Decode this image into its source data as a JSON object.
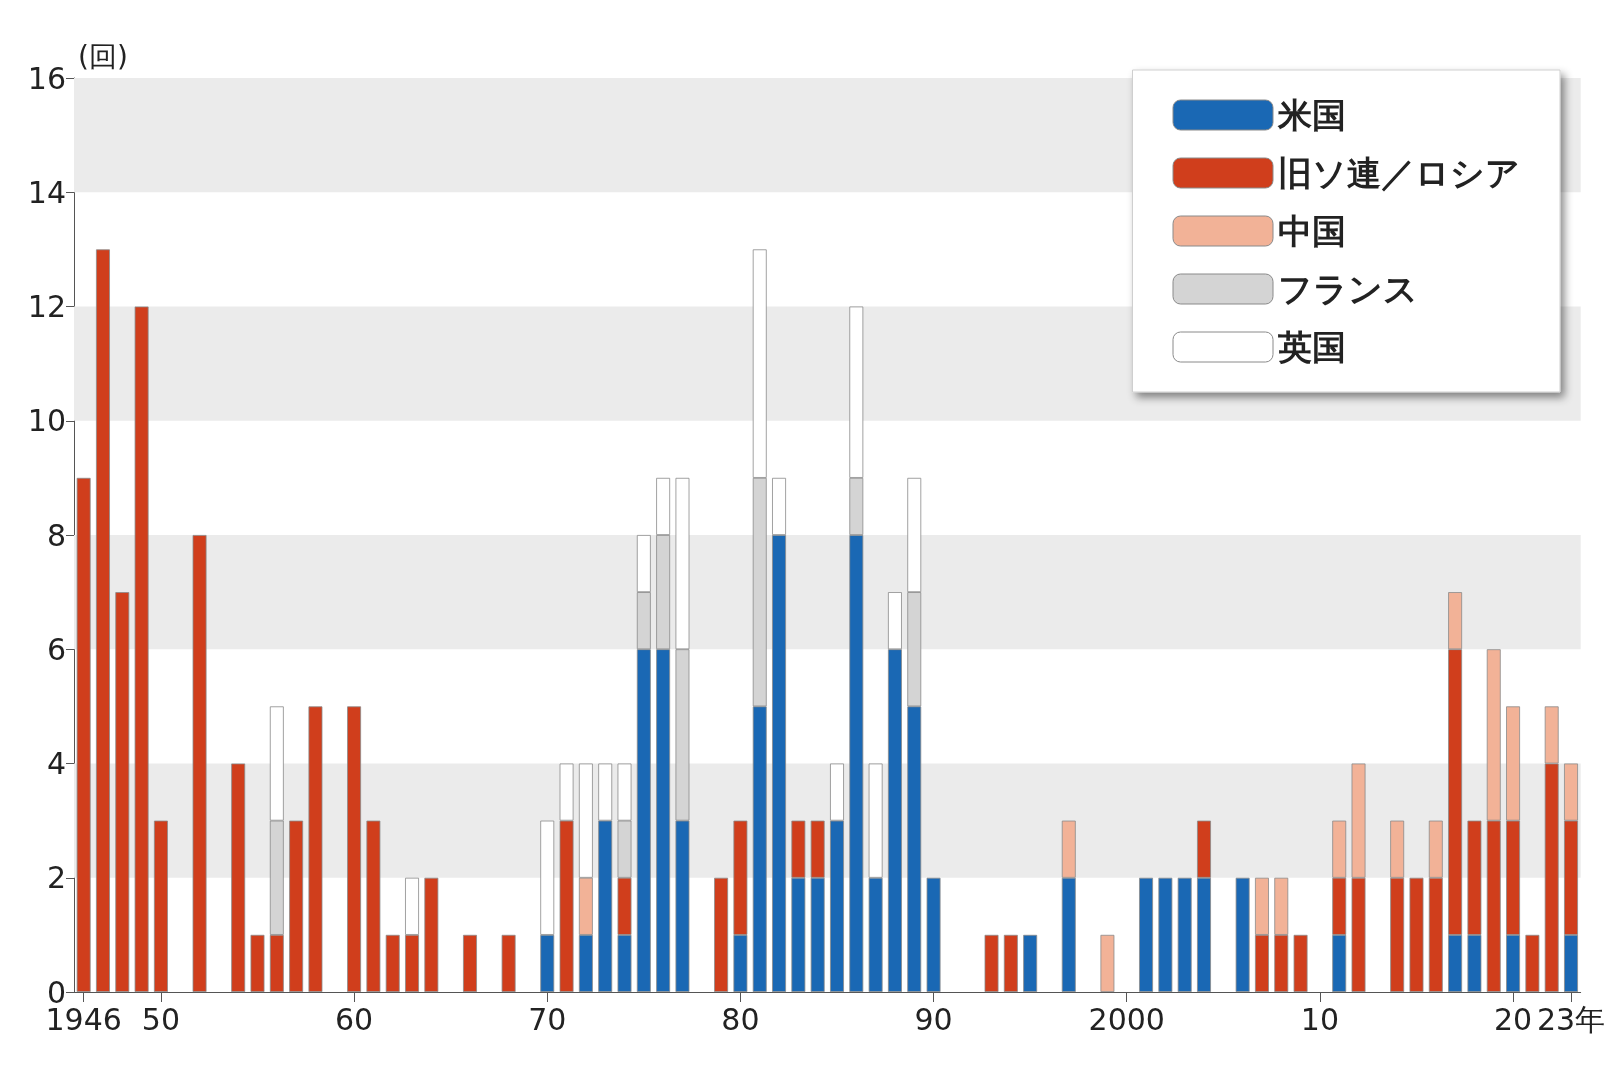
{
  "chart_data": {
    "type": "bar",
    "stacked": true,
    "ylabel": "(回)",
    "categories": [
      "1946",
      null,
      null,
      null,
      "50",
      null,
      null,
      null,
      null,
      null,
      null,
      null,
      null,
      null,
      "60",
      null,
      null,
      null,
      null,
      null,
      null,
      null,
      null,
      null,
      "70",
      null,
      null,
      null,
      null,
      null,
      null,
      null,
      null,
      null,
      "80",
      null,
      null,
      null,
      null,
      null,
      null,
      null,
      null,
      null,
      "90",
      null,
      null,
      null,
      null,
      null,
      null,
      null,
      null,
      null,
      "2000",
      null,
      null,
      null,
      null,
      null,
      null,
      null,
      null,
      null,
      "10",
      null,
      null,
      null,
      null,
      null,
      null,
      null,
      null,
      null,
      "20",
      null,
      null,
      "23年"
    ],
    "series": [
      {
        "name": "米国",
        "color": "#1a68b4",
        "values": [
          null,
          null,
          null,
          null,
          null,
          null,
          null,
          null,
          null,
          null,
          null,
          null,
          null,
          null,
          null,
          null,
          null,
          null,
          null,
          null,
          null,
          null,
          null,
          null,
          1,
          null,
          1,
          3,
          1,
          6,
          6,
          3,
          null,
          null,
          1,
          5,
          8,
          2,
          2,
          3,
          8,
          2,
          6,
          5,
          2,
          null,
          null,
          null,
          null,
          1,
          null,
          2,
          null,
          null,
          null,
          2,
          2,
          2,
          2,
          null,
          2,
          null,
          null,
          null,
          null,
          1,
          null,
          null,
          null,
          null,
          null,
          1,
          1,
          null,
          1,
          null,
          null,
          1
        ]
      },
      {
        "name": "旧ソ連／ロシア",
        "color": "#d03e1c",
        "values": [
          9,
          13,
          7,
          12,
          3,
          null,
          8,
          null,
          4,
          1,
          1,
          3,
          5,
          null,
          5,
          3,
          1,
          1,
          2,
          null,
          1,
          null,
          1,
          null,
          null,
          3,
          null,
          null,
          1,
          null,
          null,
          null,
          null,
          2,
          2,
          null,
          null,
          1,
          1,
          null,
          null,
          null,
          null,
          null,
          null,
          null,
          null,
          1,
          1,
          null,
          null,
          null,
          null,
          null,
          null,
          null,
          null,
          null,
          1,
          null,
          null,
          1,
          1,
          1,
          null,
          1,
          2,
          null,
          2,
          2,
          2,
          5,
          2,
          3,
          2,
          1,
          4,
          2
        ]
      },
      {
        "name": "中国",
        "color": "#f2b297",
        "values": [
          null,
          null,
          null,
          null,
          null,
          null,
          null,
          null,
          null,
          null,
          null,
          null,
          null,
          null,
          null,
          null,
          null,
          null,
          null,
          null,
          null,
          null,
          null,
          null,
          null,
          null,
          1,
          null,
          null,
          null,
          null,
          null,
          null,
          null,
          null,
          null,
          null,
          null,
          null,
          null,
          null,
          null,
          null,
          null,
          null,
          null,
          null,
          null,
          null,
          null,
          null,
          1,
          null,
          1,
          null,
          null,
          null,
          null,
          null,
          null,
          null,
          1,
          1,
          null,
          null,
          1,
          2,
          null,
          1,
          null,
          1,
          1,
          null,
          3,
          2,
          null,
          1,
          1
        ]
      },
      {
        "name": "フランス",
        "color": "#d4d4d4",
        "values": [
          null,
          null,
          null,
          null,
          null,
          null,
          null,
          null,
          null,
          null,
          2,
          null,
          null,
          null,
          null,
          null,
          null,
          null,
          null,
          null,
          null,
          null,
          null,
          null,
          null,
          null,
          null,
          null,
          1,
          1,
          2,
          3,
          null,
          null,
          null,
          4,
          null,
          null,
          null,
          null,
          1,
          null,
          null,
          2,
          null,
          null,
          null,
          null,
          null,
          null,
          null,
          null,
          null,
          null,
          null,
          null,
          null,
          null,
          null,
          null,
          null,
          null,
          null,
          null,
          null,
          null,
          null,
          null,
          null,
          null,
          null,
          null,
          null,
          null,
          null,
          null,
          null,
          null
        ]
      },
      {
        "name": "英国",
        "color": "#ffffff",
        "values": [
          null,
          null,
          null,
          null,
          null,
          null,
          null,
          null,
          null,
          null,
          2,
          null,
          null,
          null,
          null,
          null,
          null,
          1,
          null,
          null,
          null,
          null,
          null,
          null,
          2,
          1,
          2,
          1,
          1,
          1,
          1,
          3,
          null,
          null,
          null,
          4,
          1,
          null,
          null,
          1,
          3,
          2,
          1,
          2,
          null,
          null,
          null,
          null,
          null,
          null,
          null,
          null,
          null,
          null,
          null,
          null,
          null,
          null,
          null,
          null,
          null,
          null,
          null,
          null,
          null,
          null,
          null,
          null,
          null,
          null,
          null,
          null,
          null,
          null,
          null,
          null,
          null,
          null
        ]
      }
    ],
    "ylim": [
      0,
      16
    ],
    "yticks": [
      0,
      2,
      4,
      6,
      8,
      10,
      12,
      14,
      16
    ],
    "bands": [
      {
        "axis": "y",
        "from": 2,
        "to": 4,
        "color": "#ebebeb"
      },
      {
        "axis": "y",
        "from": 6,
        "to": 8,
        "color": "#ebebeb"
      },
      {
        "axis": "y",
        "from": 10,
        "to": 12,
        "color": "#ebebeb"
      },
      {
        "axis": "y",
        "from": 14,
        "to": 16,
        "color": "#ebebeb"
      }
    ],
    "legend": "top right"
  }
}
